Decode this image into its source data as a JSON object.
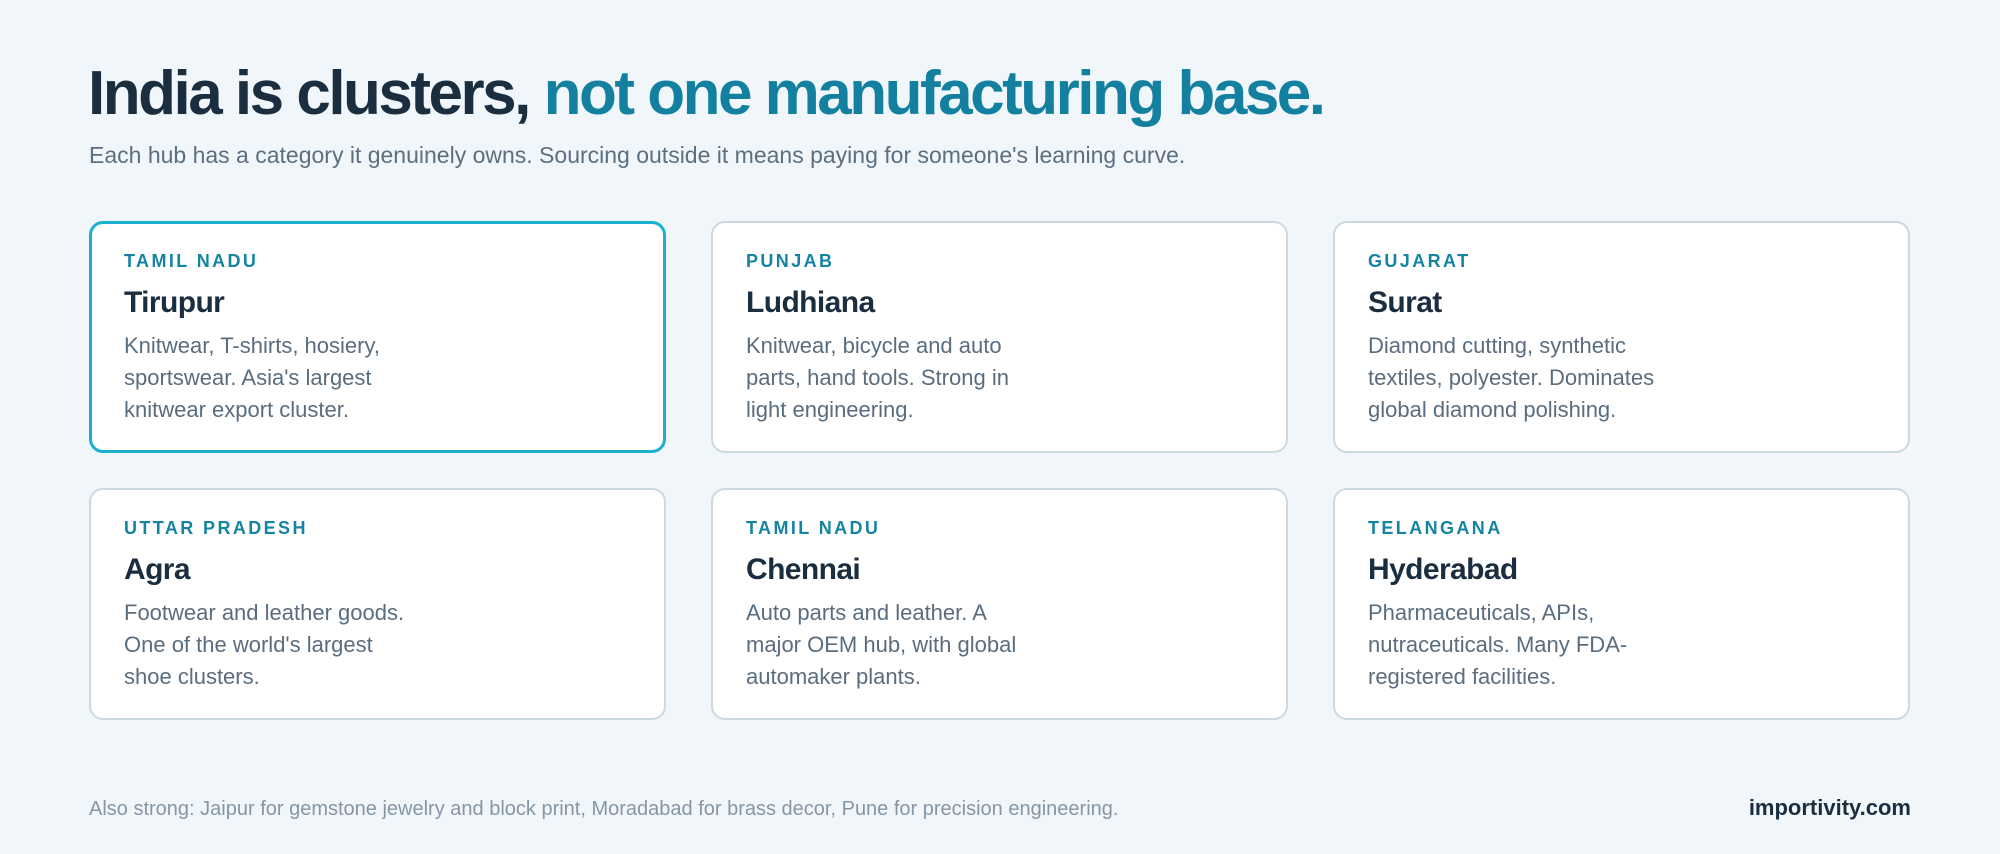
{
  "header": {
    "title_part1": "India is clusters, ",
    "title_part2": "not one manufacturing base.",
    "subtitle": "Each hub has a category it genuinely owns. Sourcing outside it means paying for someone's learning curve."
  },
  "clusters": [
    {
      "region": "TAMIL NADU",
      "city": "Tirupur",
      "description": "Knitwear, T-shirts, hosiery, sportswear. Asia's largest knitwear export cluster.",
      "selected": true
    },
    {
      "region": "PUNJAB",
      "city": "Ludhiana",
      "description": "Knitwear, bicycle and auto parts, hand tools. Strong in light engineering.",
      "selected": false
    },
    {
      "region": "GUJARAT",
      "city": "Surat",
      "description": "Diamond cutting, synthetic textiles, polyester. Dominates global diamond polishing.",
      "selected": false
    },
    {
      "region": "UTTAR PRADESH",
      "city": "Agra",
      "description": "Footwear and leather goods. One of the world's largest shoe clusters.",
      "selected": false
    },
    {
      "region": "TAMIL NADU",
      "city": "Chennai",
      "description": "Auto parts and leather. A major OEM hub, with global automaker plants.",
      "selected": false
    },
    {
      "region": "TELANGANA",
      "city": "Hyderabad",
      "description": "Pharmaceuticals, APIs, nutraceuticals. Many FDA-registered facilities.",
      "selected": false
    }
  ],
  "footer": {
    "note": "Also strong: Jaipur for gemstone jewelry and block print, Moradabad for brass decor, Pune for precision engineering.",
    "brand": "importivity.com"
  },
  "colors": {
    "background": "#f0f6fa",
    "heading": "#1b2e40",
    "accent": "#1380a0",
    "selected_border": "#1ab0d0",
    "card_border": "#cdd9e1"
  }
}
